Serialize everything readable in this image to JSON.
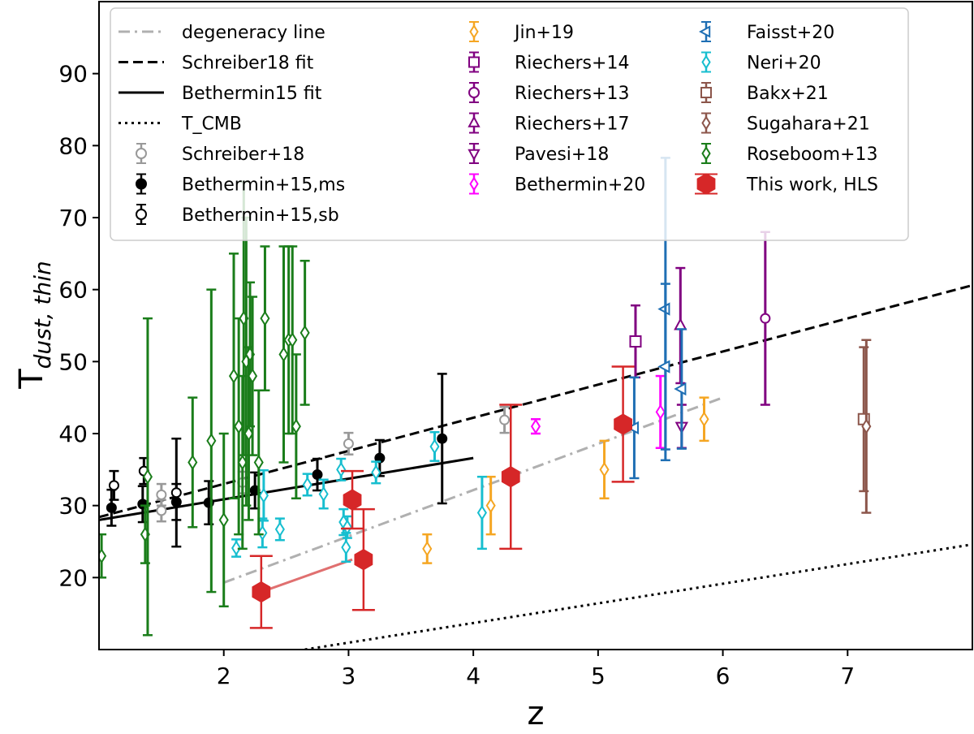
{
  "chart_data": {
    "type": "scatter",
    "title": "",
    "xlabel": "z",
    "ylabel_main": "T",
    "ylabel_sub": "dust, thin",
    "xlim": [
      1.0,
      8.0
    ],
    "ylim": [
      10.0,
      100.0
    ],
    "xticks": [
      2,
      3,
      4,
      5,
      6,
      7
    ],
    "yticks": [
      20,
      30,
      40,
      50,
      60,
      70,
      80,
      90
    ],
    "grid": false,
    "legend_position": "top",
    "lines": [
      {
        "name": "degeneracy line",
        "style": "dashdot",
        "color": "#b0b0b0",
        "x": [
          2.0,
          6.0
        ],
        "y": [
          19.3,
          45.0
        ]
      },
      {
        "name": "Schreiber18 fit",
        "style": "dashed",
        "color": "#000000",
        "x": [
          1.0,
          8.0
        ],
        "y": [
          28.4,
          60.6
        ]
      },
      {
        "name": "Bethermin15 fit",
        "style": "solid",
        "color": "#000000",
        "x": [
          1.0,
          4.0
        ],
        "y": [
          28.0,
          36.6
        ]
      },
      {
        "name": "T_CMB",
        "style": "dotted",
        "color": "#000000",
        "x": [
          2.65,
          8.0
        ],
        "y": [
          10.0,
          24.6
        ]
      }
    ],
    "series": [
      {
        "name": "Schreiber+18",
        "marker": "circle-open",
        "color": "#999999",
        "points": [
          [
            1.5,
            29.3,
            1.5
          ],
          [
            1.5,
            31.5,
            1.5
          ],
          [
            2.15,
            33.2,
            1.5
          ],
          [
            3.0,
            38.6,
            1.5
          ],
          [
            4.25,
            41.9,
            1.8
          ]
        ]
      },
      {
        "name": "Bethermin+15,ms",
        "marker": "circle-filled",
        "color": "#000000",
        "points": [
          [
            1.1,
            29.7,
            2.5
          ],
          [
            1.35,
            30.2,
            2.5
          ],
          [
            1.62,
            30.5,
            2.5
          ],
          [
            1.88,
            30.4,
            3.0
          ],
          [
            2.25,
            32.1,
            2.5
          ],
          [
            2.75,
            34.3,
            2.2
          ],
          [
            3.25,
            36.6,
            2.5
          ],
          [
            3.75,
            39.3,
            9.0
          ]
        ]
      },
      {
        "name": "Bethermin+15,sb",
        "marker": "circle-open",
        "color": "#000000",
        "points": [
          [
            1.12,
            32.8,
            2.0
          ],
          [
            1.36,
            34.8,
            1.8
          ],
          [
            1.62,
            31.8,
            7.5
          ]
        ]
      },
      {
        "name": "Jin+19",
        "marker": "diamond-open",
        "color": "#f5a623",
        "points": [
          [
            3.63,
            24.0,
            2.0
          ],
          [
            4.14,
            30.0,
            4.0
          ],
          [
            5.05,
            35.0,
            4.0
          ],
          [
            5.85,
            42.0,
            3.0
          ]
        ]
      },
      {
        "name": "Riechers+14",
        "marker": "square-open",
        "color": "#800080",
        "points": [
          [
            5.3,
            52.8,
            5.0
          ]
        ]
      },
      {
        "name": "Riechers+13",
        "marker": "circle-open",
        "color": "#800080",
        "points": [
          [
            6.34,
            56.0,
            12.0
          ]
        ]
      },
      {
        "name": "Riechers+17",
        "marker": "triangle-up-open",
        "color": "#800080",
        "points": [
          [
            5.66,
            55.0,
            8.0
          ]
        ]
      },
      {
        "name": "Pavesi+18",
        "marker": "triangle-down-open",
        "color": "#800080",
        "points": [
          [
            5.67,
            41.0,
            3.0
          ]
        ]
      },
      {
        "name": "Bethermin+20",
        "marker": "diamond-open",
        "color": "#ff00ff",
        "points": [
          [
            4.5,
            41.0,
            1.0
          ],
          [
            5.5,
            43.0,
            5.0
          ]
        ]
      },
      {
        "name": "Faisst+20",
        "marker": "triangle-left-open",
        "color": "#1f6fb4",
        "points": [
          [
            5.29,
            40.8,
            7.0
          ],
          [
            5.54,
            57.3,
            21.0
          ],
          [
            5.54,
            49.3,
            11.5
          ],
          [
            5.67,
            46.2,
            8.3
          ]
        ]
      },
      {
        "name": "Neri+20",
        "marker": "diamond-open",
        "color": "#17becf",
        "points": [
          [
            2.1,
            24.1,
            1.2
          ],
          [
            2.31,
            26.2,
            2.0
          ],
          [
            2.32,
            31.4,
            3.5
          ],
          [
            2.45,
            26.7,
            1.5
          ],
          [
            2.67,
            32.9,
            1.5
          ],
          [
            2.8,
            31.6,
            2.0
          ],
          [
            2.94,
            35.0,
            1.5
          ],
          [
            2.96,
            27.7,
            1.8
          ],
          [
            2.99,
            27.0,
            1.5
          ],
          [
            2.98,
            24.2,
            2.0
          ],
          [
            3.22,
            34.6,
            1.5
          ],
          [
            3.69,
            38.2,
            2.0
          ],
          [
            4.07,
            29.0,
            5.0
          ]
        ]
      },
      {
        "name": "Bakx+21",
        "marker": "square-open",
        "color": "#8c564b",
        "points": [
          [
            7.13,
            42.0,
            10.0
          ]
        ]
      },
      {
        "name": "Sugahara+21",
        "marker": "diamond-open",
        "color": "#8c564b",
        "points": [
          [
            7.15,
            41.0,
            12.0
          ]
        ]
      },
      {
        "name": "Roseboom+13",
        "marker": "diamond-open",
        "color": "#1a7d1a",
        "points": [
          [
            1.02,
            23.0,
            3.0
          ],
          [
            1.37,
            26.0,
            4.0
          ],
          [
            1.39,
            34.0,
            22.0
          ],
          [
            1.75,
            36.0,
            9.0
          ],
          [
            1.9,
            39.0,
            21.0
          ],
          [
            2.0,
            28.0,
            12.0
          ],
          [
            2.08,
            48.0,
            17.0
          ],
          [
            2.12,
            41.0,
            15.0
          ],
          [
            2.15,
            36.0,
            12.0
          ],
          [
            2.16,
            56.0,
            19.0
          ],
          [
            2.18,
            50.0,
            20.0
          ],
          [
            2.2,
            40.0,
            12.0
          ],
          [
            2.21,
            51.0,
            10.0
          ],
          [
            2.23,
            48.0,
            11.0
          ],
          [
            2.28,
            36.0,
            10.0
          ],
          [
            2.33,
            56.0,
            10.0
          ],
          [
            2.48,
            51.0,
            15.0
          ],
          [
            2.52,
            53.0,
            13.0
          ],
          [
            2.55,
            53.0,
            13.0
          ],
          [
            2.58,
            41.0,
            10.0
          ],
          [
            2.65,
            54.0,
            10.0
          ]
        ]
      },
      {
        "name": "This work, HLS",
        "marker": "hexagon-filled",
        "color": "#d62728",
        "points": [
          [
            2.3,
            18.0,
            5.0
          ],
          [
            3.03,
            30.8,
            4.0
          ],
          [
            3.12,
            22.5,
            7.0
          ],
          [
            4.3,
            34.0,
            10.0
          ],
          [
            5.2,
            41.3,
            8.0
          ]
        ]
      }
    ],
    "hls_connector": {
      "color": "#e07070",
      "x": [
        2.3,
        3.03
      ],
      "y": [
        18.0,
        22.5
      ]
    },
    "legend": {
      "columns": [
        [
          "degeneracy line",
          "Schreiber18 fit",
          "Bethermin15 fit",
          "T_CMB",
          "Schreiber+18",
          "Bethermin+15,ms",
          "Bethermin+15,sb"
        ],
        [
          "Jin+19",
          "Riechers+14",
          "Riechers+13",
          "Riechers+17",
          "Pavesi+18",
          "Bethermin+20"
        ],
        [
          "Faisst+20",
          "Neri+20",
          "Bakx+21",
          "Sugahara+21",
          "Roseboom+13",
          "This work, HLS"
        ]
      ]
    }
  }
}
